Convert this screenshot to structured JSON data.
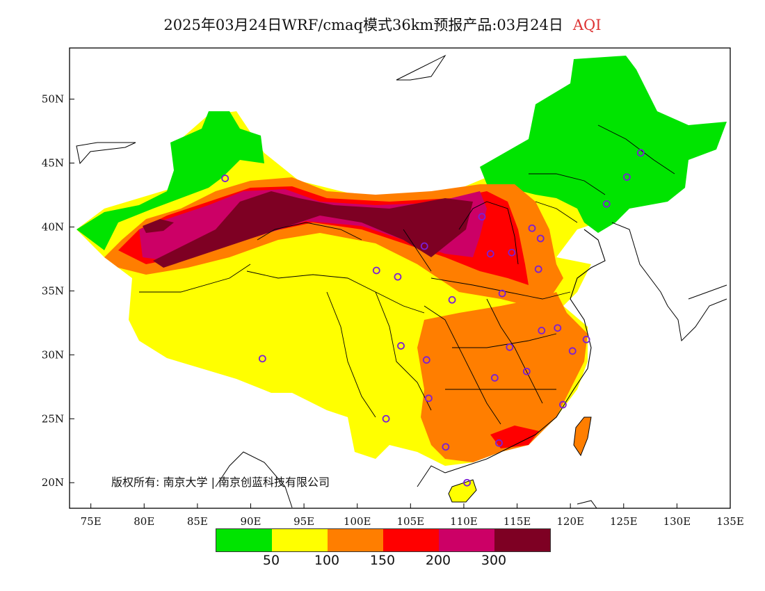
{
  "title": {
    "main": "2025年03月24日WRF/cmaq模式36km预报产品:03月24日",
    "variable": "AQI"
  },
  "axes": {
    "x_ticks": [
      "75E",
      "80E",
      "85E",
      "90E",
      "95E",
      "100E",
      "105E",
      "110E",
      "115E",
      "120E",
      "125E",
      "130E",
      "135E"
    ],
    "y_ticks": [
      "50N",
      "45N",
      "40N",
      "35N",
      "30N",
      "25N",
      "20N"
    ],
    "lon_range": [
      73,
      135
    ],
    "lat_range": [
      18,
      54
    ]
  },
  "copyright": "版权所有: 南京大学 | 南京创蓝科技有限公司",
  "legend": {
    "colors": [
      "#00e400",
      "#ffff00",
      "#ff7e00",
      "#ff0000",
      "#cc0066",
      "#7e0023"
    ],
    "labels": [
      "50",
      "100",
      "150",
      "200",
      "300"
    ]
  },
  "map_regions": {
    "good": "#00e400",
    "moderate": "#ffff00",
    "usg": "#ff7e00",
    "unhealthy": "#ff0000",
    "very_unhealthy": "#cc0066",
    "hazardous": "#7e0023"
  },
  "stations": [
    {
      "lon": 87.6,
      "lat": 43.8
    },
    {
      "lon": 126.6,
      "lat": 45.8
    },
    {
      "lon": 125.3,
      "lat": 43.9
    },
    {
      "lon": 123.4,
      "lat": 41.8
    },
    {
      "lon": 111.7,
      "lat": 40.8
    },
    {
      "lon": 116.4,
      "lat": 39.9
    },
    {
      "lon": 117.2,
      "lat": 39.1
    },
    {
      "lon": 106.3,
      "lat": 38.5
    },
    {
      "lon": 112.5,
      "lat": 37.9
    },
    {
      "lon": 114.5,
      "lat": 38.0
    },
    {
      "lon": 101.8,
      "lat": 36.6
    },
    {
      "lon": 103.8,
      "lat": 36.1
    },
    {
      "lon": 117.0,
      "lat": 36.7
    },
    {
      "lon": 108.9,
      "lat": 34.3
    },
    {
      "lon": 113.6,
      "lat": 34.8
    },
    {
      "lon": 117.3,
      "lat": 31.9
    },
    {
      "lon": 118.8,
      "lat": 32.1
    },
    {
      "lon": 121.5,
      "lat": 31.2
    },
    {
      "lon": 120.2,
      "lat": 30.3
    },
    {
      "lon": 114.3,
      "lat": 30.6
    },
    {
      "lon": 104.1,
      "lat": 30.7
    },
    {
      "lon": 106.5,
      "lat": 29.6
    },
    {
      "lon": 91.1,
      "lat": 29.7
    },
    {
      "lon": 115.9,
      "lat": 28.7
    },
    {
      "lon": 112.9,
      "lat": 28.2
    },
    {
      "lon": 106.7,
      "lat": 26.6
    },
    {
      "lon": 102.7,
      "lat": 25.0
    },
    {
      "lon": 119.3,
      "lat": 26.1
    },
    {
      "lon": 108.3,
      "lat": 22.8
    },
    {
      "lon": 113.3,
      "lat": 23.1
    },
    {
      "lon": 110.3,
      "lat": 20.0
    }
  ]
}
